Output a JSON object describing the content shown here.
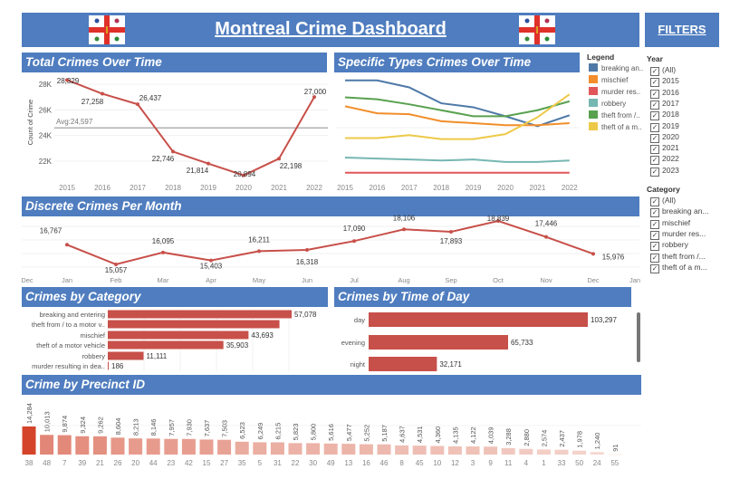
{
  "header": {
    "title": "Montreal Crime Dashboard",
    "filters_label": "FILTERS"
  },
  "colors": {
    "title_bar": "#4f7dbf",
    "line": "#c8504a",
    "bar": "#c8504a"
  },
  "filters": {
    "year_label": "Year",
    "years": [
      "(All)",
      "2015",
      "2016",
      "2017",
      "2018",
      "2019",
      "2020",
      "2021",
      "2022",
      "2023"
    ],
    "category_label": "Category",
    "categories": [
      "(All)",
      "breaking an...",
      "mischief",
      "murder res...",
      "robbery",
      "theft from /...",
      "theft of a m..."
    ]
  },
  "legend": {
    "title": "Legend",
    "items": [
      {
        "label": "breaking an..",
        "color": "#4e79a7"
      },
      {
        "label": "mischief",
        "color": "#f28e2b"
      },
      {
        "label": "murder res..",
        "color": "#e15759"
      },
      {
        "label": "robbery",
        "color": "#76b7b2"
      },
      {
        "label": "theft from /..",
        "color": "#59a14f"
      },
      {
        "label": "theft of a m..",
        "color": "#edc948"
      }
    ]
  },
  "chart_data": [
    {
      "title": "Total Crimes Over Time",
      "type": "line",
      "ylabel": "Count of Crime",
      "categories": [
        "2015",
        "2016",
        "2017",
        "2018",
        "2019",
        "2020",
        "2021",
        "2022"
      ],
      "values": [
        28329,
        27258,
        26437,
        22746,
        21814,
        20894,
        22198,
        27000
      ],
      "labels": [
        "28,329",
        "27,258",
        "26,437",
        "22,746",
        "21,814",
        "20,894",
        "22,198",
        "27,000"
      ],
      "yticks": [
        "28K",
        "26K",
        "24K",
        "22K"
      ],
      "ylim": [
        20500,
        28500
      ],
      "reference_line": {
        "label": "Avg:24,597",
        "value": 24597
      }
    },
    {
      "title": "Specific Types Crimes Over Time",
      "type": "line",
      "categories": [
        "2015",
        "2016",
        "2017",
        "2018",
        "2019",
        "2020",
        "2021",
        "2022"
      ],
      "series": [
        {
          "name": "breaking an..",
          "values": [
            9300,
            9300,
            8600,
            7000,
            6600,
            5700,
            4700,
            5800
          ]
        },
        {
          "name": "mischief",
          "values": [
            6700,
            6000,
            5900,
            5200,
            5000,
            4800,
            4800,
            5000
          ]
        },
        {
          "name": "murder res..",
          "values": [
            25,
            25,
            25,
            25,
            25,
            25,
            25,
            25
          ]
        },
        {
          "name": "robbery",
          "values": [
            1550,
            1450,
            1350,
            1250,
            1350,
            1100,
            1100,
            1250
          ]
        },
        {
          "name": "theft from /..",
          "values": [
            7600,
            7400,
            6900,
            6300,
            5700,
            5700,
            6300,
            7200
          ]
        },
        {
          "name": "theft of a m..",
          "values": [
            3500,
            3500,
            3800,
            3400,
            3400,
            3900,
            5600,
            7900
          ]
        }
      ]
    },
    {
      "title": "Discrete Crimes Per Month",
      "type": "line",
      "axis_ticks": [
        "Dec",
        "Jan",
        "Feb",
        "Mar",
        "Apr",
        "May",
        "Jun",
        "Jul",
        "Aug",
        "Sep",
        "Oct",
        "Nov",
        "Dec",
        "Jan"
      ],
      "categories": [
        "Jan",
        "Feb",
        "Mar",
        "Apr",
        "May",
        "Jun",
        "Jul",
        "Aug",
        "Sep",
        "Oct",
        "Nov",
        "Dec"
      ],
      "values": [
        16767,
        15057,
        16095,
        15403,
        16211,
        16318,
        17090,
        18106,
        17893,
        18839,
        17446,
        15976
      ],
      "labels": [
        "16,767",
        "15,057",
        "16,095",
        "15,403",
        "16,211",
        "16,318",
        "17,090",
        "18,106",
        "17,893",
        "18,839",
        "17,446",
        "15,976"
      ]
    },
    {
      "title": "Crimes by Category",
      "type": "bar",
      "categories": [
        "breaking and entering",
        "theft from / to a motor v..",
        "mischief",
        "theft of a motor vehicle",
        "robbery",
        "murder resulting in dea.."
      ],
      "values": [
        57078,
        53300,
        43693,
        35903,
        11111,
        186
      ],
      "labels": [
        "57,078",
        "",
        "43,693",
        "35,903",
        "11,111",
        "186"
      ]
    },
    {
      "title": "Crimes by Time of Day",
      "type": "bar",
      "categories": [
        "day",
        "evening",
        "night"
      ],
      "values": [
        103297,
        65733,
        32171
      ],
      "labels": [
        "103,297",
        "65,733",
        "32,171"
      ]
    },
    {
      "title": "Crime by Precinct ID",
      "type": "bar",
      "categories": [
        "38",
        "48",
        "7",
        "39",
        "21",
        "26",
        "20",
        "44",
        "23",
        "42",
        "15",
        "27",
        "35",
        "5",
        "31",
        "22",
        "30",
        "49",
        "13",
        "16",
        "46",
        "8",
        "45",
        "10",
        "12",
        "3",
        "9",
        "11",
        "4",
        "1",
        "33",
        "50",
        "24",
        "55"
      ],
      "values": [
        14284,
        10013,
        9874,
        9324,
        9262,
        8604,
        8213,
        8146,
        7957,
        7930,
        7637,
        7503,
        6523,
        6249,
        6215,
        5823,
        5800,
        5616,
        5477,
        5252,
        5187,
        4637,
        4531,
        4360,
        4135,
        4122,
        4039,
        3288,
        2880,
        2574,
        2437,
        1978,
        1240,
        91
      ],
      "labels": [
        "14,284",
        "10,013",
        "9,874",
        "9,324",
        "9,262",
        "8,604",
        "8,213",
        "8,146",
        "7,957",
        "7,930",
        "7,637",
        "7,503",
        "6,523",
        "6,249",
        "6,215",
        "5,823",
        "5,800",
        "5,616",
        "5,477",
        "5,252",
        "5,187",
        "4,637",
        "4,531",
        "4,360",
        "4,135",
        "4,122",
        "4,039",
        "3,288",
        "2,880",
        "2,574",
        "2,437",
        "1,978",
        "1,240",
        "91"
      ]
    }
  ]
}
